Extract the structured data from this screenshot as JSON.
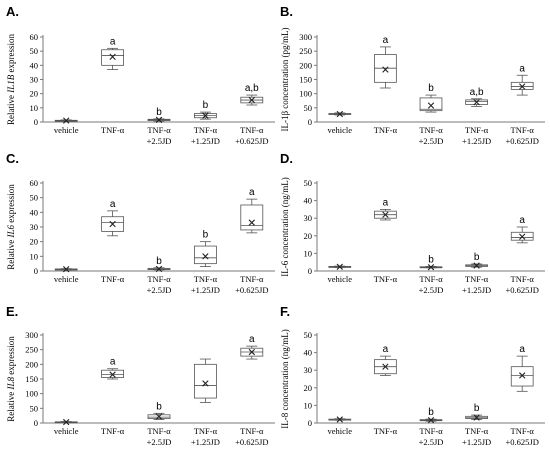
{
  "categories": [
    "vehicle",
    "TNF-α",
    "TNF-α +2.5JD",
    "TNF-α +1.25JD",
    "TNF-α +0.625JD"
  ],
  "chart_data": [
    {
      "type": "box",
      "panel_label": "A.",
      "ylabel_parts": [
        "Relative ",
        "IL1B",
        " expression"
      ],
      "ylim": [
        0,
        60
      ],
      "yticks": [
        0,
        10,
        20,
        30,
        40,
        50,
        60
      ],
      "boxes": [
        {
          "category": "vehicle",
          "min": 0.5,
          "q1": 0.8,
          "median": 1.0,
          "q3": 1.2,
          "max": 1.5,
          "mean": 1.0,
          "sig": ""
        },
        {
          "category": "TNF-α",
          "min": 37,
          "q1": 40,
          "median": 47,
          "q3": 51,
          "max": 52,
          "mean": 46,
          "sig": "a"
        },
        {
          "category": "TNF-α +2.5JD",
          "min": 0.7,
          "q1": 1.0,
          "median": 1.5,
          "q3": 1.9,
          "max": 2.2,
          "mean": 1.5,
          "sig": "b"
        },
        {
          "category": "TNF-α +1.25JD",
          "min": 2,
          "q1": 3,
          "median": 4.5,
          "q3": 6,
          "max": 7,
          "mean": 4.5,
          "sig": "b"
        },
        {
          "category": "TNF-α +0.625JD",
          "min": 12,
          "q1": 13.5,
          "median": 15.5,
          "q3": 17.5,
          "max": 19,
          "mean": 15.5,
          "sig": "a,b"
        }
      ]
    },
    {
      "type": "box",
      "panel_label": "B.",
      "ylabel_parts": [
        "IL-1β concentration (pg/mL)"
      ],
      "ylim": [
        0,
        300
      ],
      "yticks": [
        0,
        50,
        100,
        150,
        200,
        250,
        300
      ],
      "boxes": [
        {
          "category": "vehicle",
          "min": 25,
          "q1": 27,
          "median": 28,
          "q3": 30,
          "max": 32,
          "mean": 28,
          "sig": ""
        },
        {
          "category": "TNF-α",
          "min": 120,
          "q1": 140,
          "median": 190,
          "q3": 238,
          "max": 265,
          "mean": 185,
          "sig": "a"
        },
        {
          "category": "TNF-α +2.5JD",
          "min": 35,
          "q1": 40,
          "median": 45,
          "q3": 85,
          "max": 95,
          "mean": 58,
          "sig": "b"
        },
        {
          "category": "TNF-α +1.25JD",
          "min": 55,
          "q1": 62,
          "median": 72,
          "q3": 78,
          "max": 82,
          "mean": 70,
          "sig": "a,b"
        },
        {
          "category": "TNF-α +0.625JD",
          "min": 95,
          "q1": 115,
          "median": 125,
          "q3": 140,
          "max": 165,
          "mean": 125,
          "sig": "a"
        }
      ]
    },
    {
      "type": "box",
      "panel_label": "C.",
      "ylabel_parts": [
        "Relative ",
        "IL6",
        " expression"
      ],
      "ylim": [
        0,
        60
      ],
      "yticks": [
        0,
        10,
        20,
        30,
        40,
        50,
        60
      ],
      "boxes": [
        {
          "category": "vehicle",
          "min": 0.8,
          "q1": 1.0,
          "median": 1.2,
          "q3": 1.4,
          "max": 1.6,
          "mean": 1.2,
          "sig": ""
        },
        {
          "category": "TNF-α",
          "min": 24,
          "q1": 27,
          "median": 33,
          "q3": 37,
          "max": 41,
          "mean": 32,
          "sig": "a"
        },
        {
          "category": "TNF-α +2.5JD",
          "min": 0.8,
          "q1": 1.0,
          "median": 1.3,
          "q3": 1.8,
          "max": 2.2,
          "mean": 1.4,
          "sig": "b"
        },
        {
          "category": "TNF-α +1.25JD",
          "min": 3,
          "q1": 5,
          "median": 9,
          "q3": 17,
          "max": 20,
          "mean": 10,
          "sig": "b"
        },
        {
          "category": "TNF-α +0.625JD",
          "min": 26,
          "q1": 28,
          "median": 31,
          "q3": 45,
          "max": 49,
          "mean": 33,
          "sig": "a"
        }
      ]
    },
    {
      "type": "box",
      "panel_label": "D.",
      "ylabel_parts": [
        "IL-6 concentration (ng/mL)"
      ],
      "ylim": [
        0,
        50
      ],
      "yticks": [
        0,
        10,
        20,
        30,
        40,
        50
      ],
      "boxes": [
        {
          "category": "vehicle",
          "min": 2.0,
          "q1": 2.2,
          "median": 2.4,
          "q3": 2.6,
          "max": 2.8,
          "mean": 2.4,
          "sig": ""
        },
        {
          "category": "TNF-α",
          "min": 29,
          "q1": 30,
          "median": 32,
          "q3": 34,
          "max": 35,
          "mean": 32,
          "sig": "a"
        },
        {
          "category": "TNF-α +2.5JD",
          "min": 1.8,
          "q1": 2.0,
          "median": 2.2,
          "q3": 2.4,
          "max": 2.6,
          "mean": 2.2,
          "sig": "b"
        },
        {
          "category": "TNF-α +1.25JD",
          "min": 2.2,
          "q1": 2.6,
          "median": 3.0,
          "q3": 3.5,
          "max": 4.0,
          "mean": 3.1,
          "sig": "b"
        },
        {
          "category": "TNF-α +0.625JD",
          "min": 16,
          "q1": 17.5,
          "median": 19,
          "q3": 22,
          "max": 25,
          "mean": 19.5,
          "sig": "a"
        }
      ]
    },
    {
      "type": "box",
      "panel_label": "E.",
      "ylabel_parts": [
        "Relative ",
        "IL8",
        " expression"
      ],
      "ylim": [
        0,
        300
      ],
      "yticks": [
        0,
        50,
        100,
        150,
        200,
        250,
        300
      ],
      "boxes": [
        {
          "category": "vehicle",
          "min": 1,
          "q1": 2,
          "median": 3,
          "q3": 4,
          "max": 5,
          "mean": 3,
          "sig": ""
        },
        {
          "category": "TNF-α",
          "min": 150,
          "q1": 155,
          "median": 165,
          "q3": 180,
          "max": 185,
          "mean": 165,
          "sig": "a"
        },
        {
          "category": "TNF-α +2.5JD",
          "min": 12,
          "q1": 15,
          "median": 20,
          "q3": 28,
          "max": 33,
          "mean": 22,
          "sig": "b"
        },
        {
          "category": "TNF-α +1.25JD",
          "min": 70,
          "q1": 85,
          "median": 128,
          "q3": 200,
          "max": 218,
          "mean": 135,
          "sig": ""
        },
        {
          "category": "TNF-α +0.625JD",
          "min": 218,
          "q1": 228,
          "median": 242,
          "q3": 255,
          "max": 262,
          "mean": 242,
          "sig": "a"
        }
      ]
    },
    {
      "type": "box",
      "panel_label": "F.",
      "ylabel_parts": [
        "IL-8 concentration (ng/mL)"
      ],
      "ylim": [
        0,
        50
      ],
      "yticks": [
        0,
        10,
        20,
        30,
        40,
        50
      ],
      "boxes": [
        {
          "category": "vehicle",
          "min": 1.6,
          "q1": 1.8,
          "median": 2.0,
          "q3": 2.2,
          "max": 2.4,
          "mean": 2.0,
          "sig": ""
        },
        {
          "category": "TNF-α",
          "min": 27,
          "q1": 28,
          "median": 32,
          "q3": 36,
          "max": 38,
          "mean": 32,
          "sig": "a"
        },
        {
          "category": "TNF-α +2.5JD",
          "min": 1.0,
          "q1": 1.3,
          "median": 1.6,
          "q3": 1.9,
          "max": 2.2,
          "mean": 1.6,
          "sig": "b"
        },
        {
          "category": "TNF-α +1.25JD",
          "min": 2.0,
          "q1": 2.5,
          "median": 3.0,
          "q3": 3.8,
          "max": 4.5,
          "mean": 3.1,
          "sig": "b"
        },
        {
          "category": "TNF-α +0.625JD",
          "min": 18,
          "q1": 21,
          "median": 27,
          "q3": 32,
          "max": 38,
          "mean": 27,
          "sig": "a"
        }
      ]
    }
  ]
}
